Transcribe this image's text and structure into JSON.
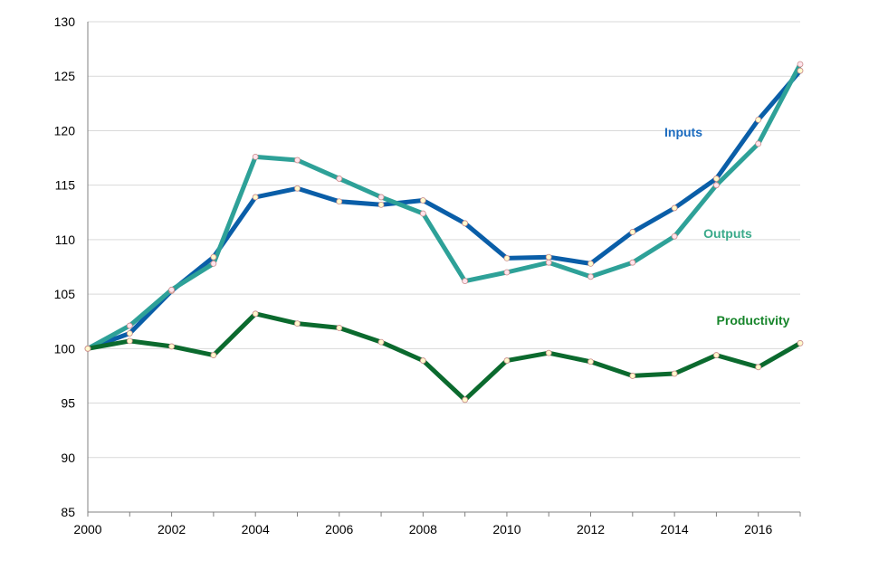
{
  "chart_data": {
    "type": "line",
    "title": "",
    "xlabel": "",
    "ylabel": "",
    "xlim": [
      2000,
      2017
    ],
    "ylim": [
      85,
      130
    ],
    "x_ticks": [
      "2000",
      "2002",
      "2004",
      "2006",
      "2008",
      "2010",
      "2012",
      "2014",
      "2016"
    ],
    "y_ticks": [
      "85",
      "90",
      "95",
      "100",
      "105",
      "110",
      "115",
      "120",
      "125",
      "130"
    ],
    "grid": "horizontal",
    "x": [
      2000,
      2001,
      2002,
      2003,
      2004,
      2005,
      2006,
      2007,
      2008,
      2009,
      2010,
      2011,
      2012,
      2013,
      2014,
      2015,
      2016,
      2017
    ],
    "series": [
      {
        "name": "Inputs",
        "color": "#0a5ea8",
        "marker_color": "#fffacd",
        "values": [
          100,
          101.4,
          105.3,
          108.4,
          113.9,
          114.7,
          113.5,
          113.2,
          113.6,
          111.5,
          108.3,
          108.4,
          107.8,
          110.7,
          112.9,
          115.6,
          121.0,
          125.5
        ]
      },
      {
        "name": "Outputs",
        "color": "#2ea198",
        "marker_color": "#ffe4ec",
        "values": [
          100,
          102.1,
          105.4,
          107.8,
          117.6,
          117.3,
          115.6,
          113.9,
          112.4,
          106.2,
          107.0,
          107.9,
          106.6,
          107.9,
          110.3,
          115.0,
          118.8,
          126.1
        ]
      },
      {
        "name": "Productivity",
        "color": "#0b6a2e",
        "marker_color": "#fffacd",
        "values": [
          100,
          100.7,
          100.2,
          99.4,
          103.2,
          102.3,
          101.9,
          100.6,
          98.9,
          95.3,
          98.9,
          99.6,
          98.8,
          97.5,
          97.7,
          99.4,
          98.3,
          100.5
        ]
      }
    ]
  },
  "labels": {
    "inputs": "Inputs",
    "outputs": "Outputs",
    "productivity": "Productivity"
  },
  "colors": {
    "inputs_label": "#1b6bbf",
    "outputs_label": "#3aaa8a",
    "productivity_label": "#17852b",
    "grid": "#d9d9d9",
    "axis": "#808080"
  }
}
